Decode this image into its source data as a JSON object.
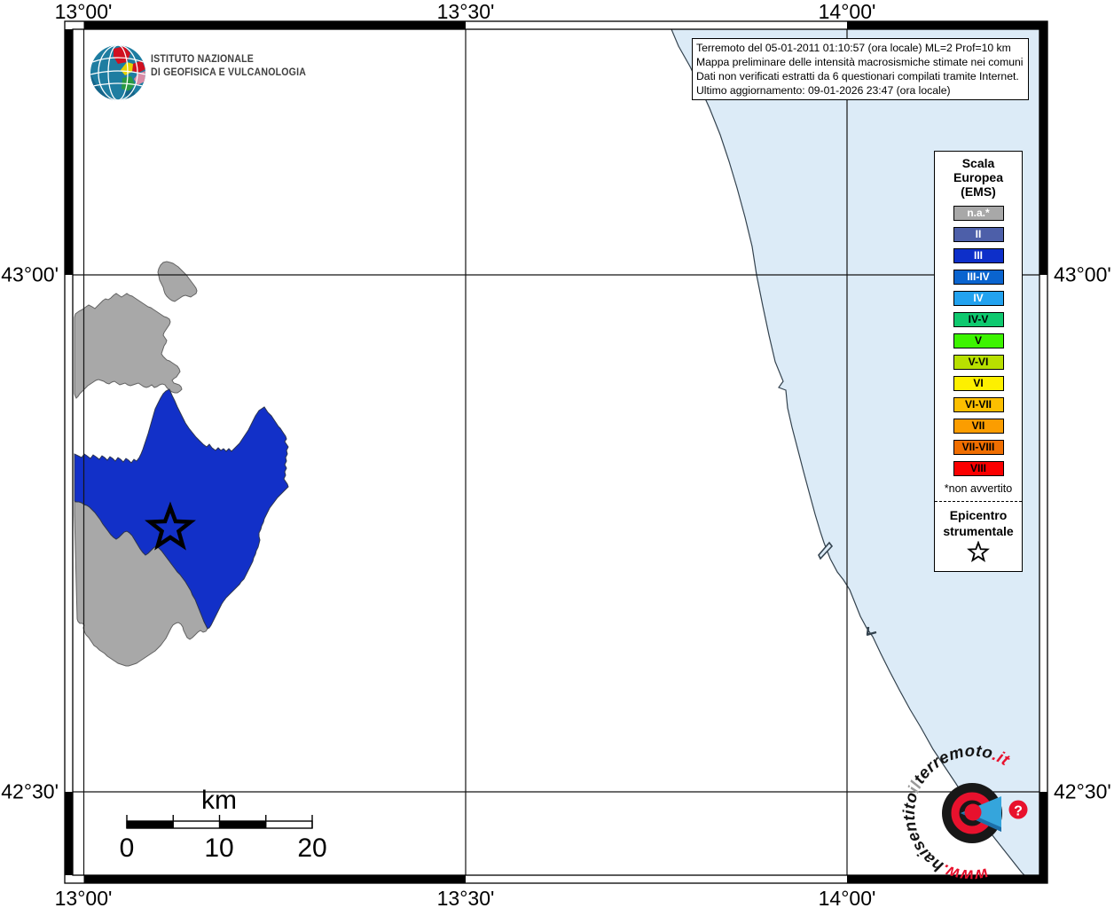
{
  "header": {
    "logo_icon": "ingv-globe-logo",
    "institute_line1": "ISTITUTO NAZIONALE",
    "institute_line2": "DI GEOFISICA E VULCANOLOGIA"
  },
  "info_box": {
    "line1": "Terremoto del 05-01-2011 01:10:57 (ora locale) ML=2 Prof=10 km",
    "line2": "Mappa preliminare delle intensità macrosismiche stimate nei comuni",
    "line3": "Dati non verificati estratti da 6 questionari compilati tramite Internet.",
    "line4": "Ultimo aggiornamento: 09-01-2026 23:47 (ora locale)"
  },
  "axis": {
    "top": [
      "13°00'",
      "13°30'",
      "14°00'"
    ],
    "bottom": [
      "13°00'",
      "13°30'",
      "14°00'"
    ],
    "left": [
      "43°00'",
      "42°30'"
    ],
    "right": [
      "43°00'",
      "42°30'"
    ]
  },
  "legend": {
    "title_line1": "Scala",
    "title_line2": "Europea",
    "title_line3": "(EMS)",
    "items": [
      {
        "label": "n.a.*",
        "color": "#a8a8a8",
        "text": "#ffffff"
      },
      {
        "label": "II",
        "color": "#4d5fa9",
        "text": "#ffffff"
      },
      {
        "label": "III",
        "color": "#0d2fc9",
        "text": "#ffffff"
      },
      {
        "label": "III-IV",
        "color": "#0a64cf",
        "text": "#ffffff"
      },
      {
        "label": "IV",
        "color": "#22a2ef",
        "text": "#ffffff"
      },
      {
        "label": "IV-V",
        "color": "#0fc96f",
        "text": "#000000"
      },
      {
        "label": "V",
        "color": "#3df400",
        "text": "#000000"
      },
      {
        "label": "V-VI",
        "color": "#b8e000",
        "text": "#000000"
      },
      {
        "label": "VI",
        "color": "#fdf000",
        "text": "#000000"
      },
      {
        "label": "VI-VII",
        "color": "#fcbf00",
        "text": "#000000"
      },
      {
        "label": "VII",
        "color": "#fb9d00",
        "text": "#000000"
      },
      {
        "label": "VII-VIII",
        "color": "#f06e00",
        "text": "#000000"
      },
      {
        "label": "VIII",
        "color": "#fb0000",
        "text": "#000000"
      }
    ],
    "footnote": "*non avvertito",
    "epicenter_line1": "Epicentro",
    "epicenter_line2": "strumentale",
    "epicenter_symbol": "star-icon"
  },
  "scale_bar": {
    "unit": "km",
    "tick0": "0",
    "tick1": "10",
    "tick2": "20"
  },
  "map": {
    "sea_color": "#dcebf7",
    "na_municipality_color": "#a8a8a8",
    "felt_municipality_color": "#1230c8",
    "epicenter_symbol": "star-icon"
  },
  "watermark": {
    "part1": "www.",
    "part2": "haisentito",
    "part3": "il",
    "part4": "terremoto",
    "part5": ".it",
    "accent_color": "#e8112d"
  }
}
